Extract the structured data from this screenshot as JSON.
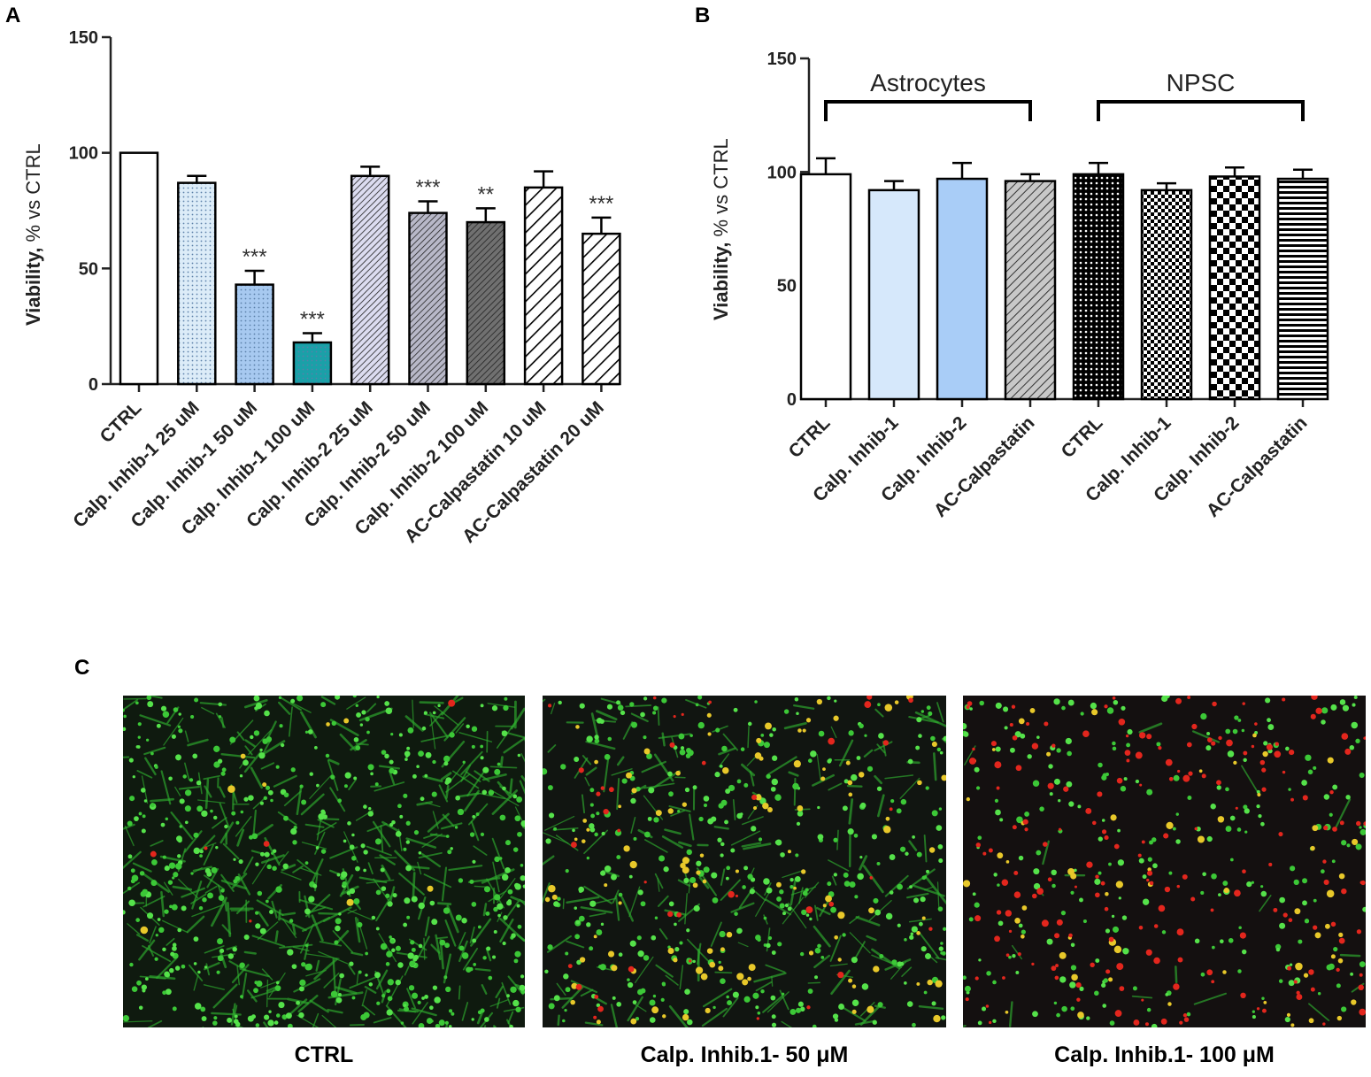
{
  "panels": {
    "a": "A",
    "b": "B",
    "c": "C"
  },
  "chart_data": [
    {
      "type": "bar",
      "panel": "A",
      "ylabel_bold": "Viability,",
      "ylabel_rest": "% vs CTRL",
      "ylim": [
        0,
        150
      ],
      "yticks": [
        0,
        50,
        100,
        150
      ],
      "categories": [
        "CTRL",
        "Calp. Inhib-1 25 uM",
        "Calp. Inhib-1 50 uM",
        "Calp. Inhib-1 100 uM",
        "Calp. Inhib-2 25 uM",
        "Calp. Inhib-2 50 uM",
        "Calp. Inhib-2 100 uM",
        "AC-Calpastatin 10 uM",
        "AC-Calpastatin 20 uM"
      ],
      "values": [
        100,
        87,
        43,
        18,
        90,
        74,
        70,
        85,
        65
      ],
      "errors": [
        0,
        3,
        6,
        4,
        4,
        5,
        6,
        7,
        7
      ],
      "significance": [
        "",
        "",
        "***",
        "***",
        "",
        "***",
        "**",
        "",
        "***"
      ],
      "fills": [
        "white",
        "#dcecf8",
        "#a7c9f0",
        "#1aa0a8",
        "#dcdcf0",
        "#b8b8c8",
        "#707070",
        "white",
        "white"
      ],
      "patterns": [
        "none",
        "dots",
        "dots",
        "dots",
        "diag-dense",
        "diag-dense",
        "diag-dense",
        "diag-wide",
        "diag-wide"
      ],
      "grid": false
    },
    {
      "type": "bar",
      "panel": "B",
      "ylabel_bold": "Viability,",
      "ylabel_rest": "% vs CTRL",
      "ylim": [
        0,
        150
      ],
      "yticks": [
        0,
        50,
        100,
        150
      ],
      "categories": [
        "CTRL",
        "Calp. Inhib-1",
        "Calp. Inhib-2",
        "AC-Calpastatin",
        "CTRL",
        "Calp. Inhib-1",
        "Calp. Inhib-2",
        "AC-Calpastatin"
      ],
      "values": [
        99,
        92,
        97,
        96,
        99,
        92,
        98,
        97
      ],
      "errors": [
        7,
        4,
        7,
        3,
        5,
        3,
        4,
        4
      ],
      "fills": [
        "white",
        "#d6e8fb",
        "#a9cdf7",
        "#c8c8c8",
        "#000000",
        "white",
        "white",
        "white"
      ],
      "patterns": [
        "none",
        "none",
        "none",
        "diag",
        "dots-white",
        "checker-small",
        "checker-large",
        "hstripes"
      ],
      "groups": [
        {
          "label": "Astrocytes",
          "start": 0,
          "end": 3
        },
        {
          "label": "NPSC",
          "start": 4,
          "end": 7
        }
      ],
      "grid": false
    }
  ],
  "micrographs": {
    "captions": [
      "CTRL",
      "Calp. Inhib.1- 50 μM",
      "Calp. Inhib.1- 100 μM"
    ]
  }
}
